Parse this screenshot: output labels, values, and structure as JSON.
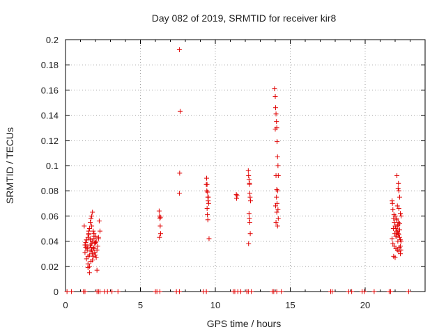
{
  "colors": {
    "marker": "#e00000",
    "grid": "#a0a0a0",
    "axis": "#000000"
  },
  "chart_data": {
    "type": "scatter",
    "title": "Day 082 of 2019, SRMTID for receiver kir8",
    "xlabel": "GPS time / hours",
    "ylabel": "SRMTID / TECUs",
    "xlim": [
      0,
      24
    ],
    "ylim": [
      0,
      0.2
    ],
    "grid": true,
    "marker": "+",
    "xticks": [
      0,
      5,
      10,
      15,
      20
    ],
    "xtick_labels": [
      "0",
      "5",
      "10",
      "15",
      "20"
    ],
    "yticks": [
      0,
      0.02,
      0.04,
      0.06,
      0.08,
      0.1,
      0.12,
      0.14,
      0.16,
      0.18,
      0.2
    ],
    "ytick_labels": [
      "0",
      "0.02",
      "0.04",
      "0.06",
      "0.08",
      "0.1",
      "0.12",
      "0.14",
      "0.16",
      "0.18",
      "0.2"
    ],
    "series": [
      {
        "name": "SRMTID",
        "x": [
          1.25,
          1.3,
          1.35,
          1.4,
          1.45,
          1.5,
          1.55,
          1.6,
          1.65,
          1.7,
          1.75,
          1.8,
          1.85,
          1.9,
          1.95,
          2.0,
          2.05,
          2.1,
          2.15,
          2.2,
          2.25,
          2.3,
          1.3,
          1.4,
          1.5,
          1.6,
          1.7,
          1.8,
          1.9,
          2.0,
          2.1,
          1.35,
          1.45,
          1.55,
          1.65,
          1.75,
          1.85,
          1.95,
          2.05,
          1.5,
          1.6,
          1.7,
          1.8,
          1.9,
          1.4,
          1.55,
          1.65,
          1.75,
          1.85,
          1.45,
          1.6,
          1.75,
          1.9,
          2.0,
          1.7,
          1.8,
          1.5,
          1.95,
          2.2,
          1.65,
          6.25,
          6.28,
          6.3,
          6.32,
          6.35,
          6.27,
          6.33,
          7.6,
          7.65,
          7.62,
          7.6,
          9.4,
          9.42,
          9.45,
          9.48,
          9.5,
          9.52,
          9.55,
          9.45,
          9.47,
          9.5,
          9.53,
          9.43,
          9.58,
          9.4,
          11.4,
          11.42,
          11.45,
          12.2,
          12.22,
          12.25,
          12.28,
          12.3,
          12.32,
          12.35,
          12.25,
          12.27,
          12.3,
          12.33,
          12.22,
          12.28,
          13.95,
          14.0,
          14.02,
          14.05,
          14.08,
          14.1,
          14.12,
          14.15,
          14.18,
          14.2,
          14.0,
          14.05,
          14.1,
          14.15,
          14.08,
          14.12,
          14.18,
          14.02,
          14.1,
          14.2,
          14.05,
          14.15,
          21.8,
          21.85,
          21.9,
          21.95,
          22.0,
          22.05,
          22.1,
          22.15,
          22.2,
          22.25,
          22.3,
          22.35,
          22.4,
          21.85,
          21.95,
          22.05,
          22.15,
          22.25,
          22.35,
          21.9,
          22.0,
          22.1,
          22.2,
          22.3,
          21.88,
          21.98,
          22.08,
          22.18,
          22.28,
          22.38,
          22.12,
          22.22,
          22.2,
          22.25,
          22.3,
          22.15,
          22.25,
          22.35,
          21.82,
          22.0,
          22.1,
          22.2,
          22.3,
          22.05,
          21.92,
          22.15,
          22.28,
          22.4,
          21.8,
          22.35,
          0.1,
          0.4,
          1.2,
          1.3,
          2.1,
          2.2,
          2.3,
          2.6,
          2.8,
          3.1,
          3.5,
          6.0,
          6.1,
          6.3,
          7.4,
          7.6,
          9.2,
          9.4,
          11.2,
          11.3,
          11.5,
          11.7,
          12.1,
          12.2,
          12.4,
          13.8,
          13.9,
          14.1,
          14.4,
          17.7,
          17.8,
          18.9,
          19.1,
          19.8,
          19.95,
          20.6,
          21.6,
          21.7,
          22.9
        ],
        "y": [
          0.052,
          0.037,
          0.035,
          0.041,
          0.033,
          0.028,
          0.045,
          0.05,
          0.055,
          0.058,
          0.06,
          0.063,
          0.048,
          0.042,
          0.038,
          0.044,
          0.04,
          0.033,
          0.036,
          0.043,
          0.056,
          0.048,
          0.031,
          0.026,
          0.022,
          0.02,
          0.024,
          0.03,
          0.034,
          0.029,
          0.017,
          0.039,
          0.036,
          0.046,
          0.042,
          0.038,
          0.035,
          0.031,
          0.027,
          0.019,
          0.015,
          0.032,
          0.04,
          0.044,
          0.041,
          0.048,
          0.037,
          0.033,
          0.028,
          0.034,
          0.029,
          0.052,
          0.046,
          0.039,
          0.035,
          0.025,
          0.043,
          0.038,
          0.042,
          0.041,
          0.064,
          0.06,
          0.058,
          0.052,
          0.046,
          0.043,
          0.059,
          0.192,
          0.143,
          0.094,
          0.078,
          0.085,
          0.09,
          0.085,
          0.079,
          0.075,
          0.072,
          0.07,
          0.066,
          0.061,
          0.057,
          0.075,
          0.08,
          0.042,
          0.085,
          0.077,
          0.074,
          0.076,
          0.096,
          0.092,
          0.089,
          0.085,
          0.078,
          0.075,
          0.072,
          0.062,
          0.058,
          0.055,
          0.046,
          0.038,
          0.086,
          0.161,
          0.155,
          0.146,
          0.141,
          0.135,
          0.13,
          0.119,
          0.107,
          0.1,
          0.092,
          0.129,
          0.092,
          0.081,
          0.08,
          0.075,
          0.07,
          0.065,
          0.068,
          0.063,
          0.058,
          0.055,
          0.052,
          0.072,
          0.065,
          0.058,
          0.055,
          0.052,
          0.05,
          0.048,
          0.047,
          0.046,
          0.045,
          0.043,
          0.041,
          0.04,
          0.038,
          0.036,
          0.034,
          0.033,
          0.032,
          0.03,
          0.028,
          0.027,
          0.057,
          0.055,
          0.054,
          0.05,
          0.046,
          0.044,
          0.04,
          0.035,
          0.033,
          0.092,
          0.086,
          0.082,
          0.08,
          0.075,
          0.068,
          0.066,
          0.062,
          0.07,
          0.06,
          0.058,
          0.053,
          0.049,
          0.044,
          0.061,
          0.052,
          0.049,
          0.06,
          0.042,
          0.036,
          0,
          0,
          0,
          0,
          0,
          0,
          0,
          0,
          0,
          0,
          0,
          0,
          0,
          0,
          0,
          0,
          0,
          0,
          0,
          0,
          0,
          0,
          0,
          0,
          0,
          0,
          0,
          0,
          0,
          0,
          0,
          0,
          0,
          0,
          0,
          0,
          0,
          0,
          0
        ]
      }
    ]
  }
}
